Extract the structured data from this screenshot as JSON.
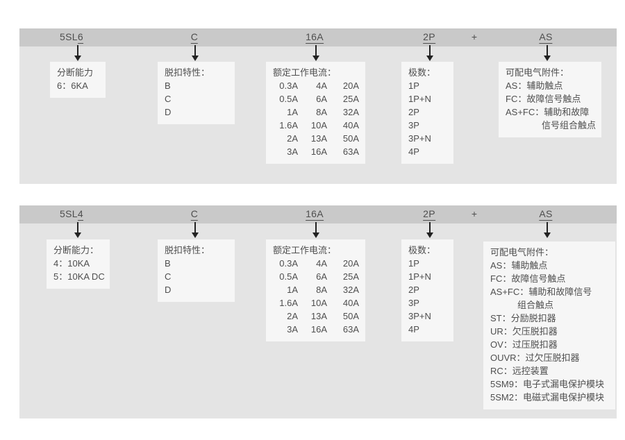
{
  "colors": {
    "header_bar": "#c9c9c9",
    "panel_background": "#e4e4e4",
    "box_background": "#f6f6f6",
    "text": "#4e4e4e",
    "arrow": "#222222"
  },
  "sections": [
    {
      "model": "5SL6",
      "header": {
        "codes": [
          {
            "prefix": "5SL",
            "code": "6"
          },
          {
            "prefix": "",
            "code": "C"
          },
          {
            "prefix": "",
            "code": "16A"
          },
          {
            "prefix": "",
            "code": "2P"
          },
          {
            "prefix": "",
            "code": "AS"
          }
        ],
        "plus": "+"
      },
      "boxes": [
        {
          "title": "分断能力",
          "lines": [
            "6：6KA"
          ]
        },
        {
          "title": "脱扣特性：",
          "lines": [
            "B",
            "C",
            "D"
          ]
        },
        {
          "title": "额定工作电流：",
          "table": [
            [
              "0.3A",
              "4A",
              "20A"
            ],
            [
              "0.5A",
              "6A",
              "25A"
            ],
            [
              "1A",
              "8A",
              "32A"
            ],
            [
              "1.6A",
              "10A",
              "40A"
            ],
            [
              "2A",
              "13A",
              "50A"
            ],
            [
              "3A",
              "16A",
              "63A"
            ]
          ]
        },
        {
          "title": "极数：",
          "lines": [
            "1P",
            "1P+N",
            "2P",
            "3P",
            "3P+N",
            "4P"
          ]
        },
        {
          "title": "可配电气附件：",
          "lines": [
            "AS：辅助触点",
            "FC：故障信号触点",
            "AS+FC：辅助和故障",
            "　　　　信号组合触点"
          ]
        }
      ]
    },
    {
      "model": "5SL4",
      "header": {
        "codes": [
          {
            "prefix": "5SL",
            "code": "4"
          },
          {
            "prefix": "",
            "code": "C"
          },
          {
            "prefix": "",
            "code": "16A"
          },
          {
            "prefix": "",
            "code": "2P"
          },
          {
            "prefix": "",
            "code": "AS"
          }
        ],
        "plus": "+"
      },
      "boxes": [
        {
          "title": "分断能力：",
          "lines": [
            "4：10KA",
            "5：10KA DC"
          ]
        },
        {
          "title": "脱扣特性：",
          "lines": [
            "B",
            "C",
            "D"
          ]
        },
        {
          "title": "额定工作电流：",
          "table": [
            [
              "0.3A",
              "4A",
              "20A"
            ],
            [
              "0.5A",
              "6A",
              "25A"
            ],
            [
              "1A",
              "8A",
              "32A"
            ],
            [
              "1.6A",
              "10A",
              "40A"
            ],
            [
              "2A",
              "13A",
              "50A"
            ],
            [
              "3A",
              "16A",
              "63A"
            ]
          ]
        },
        {
          "title": "极数：",
          "lines": [
            "1P",
            "1P+N",
            "2P",
            "3P",
            "3P+N",
            "4P"
          ]
        },
        {
          "title": "可配电气附件：",
          "lines": [
            "AS：辅助触点",
            "FC：故障信号触点",
            "AS+FC：辅助和故障信号",
            "　　　组合触点",
            "ST：分励脱扣器",
            "UR：欠压脱扣器",
            "OV：过压脱扣器",
            "OUVR：过欠压脱扣器",
            "RC：远控装置",
            "5SM9：电子式漏电保护模块",
            "5SM2：电磁式漏电保护模块"
          ]
        }
      ]
    }
  ]
}
